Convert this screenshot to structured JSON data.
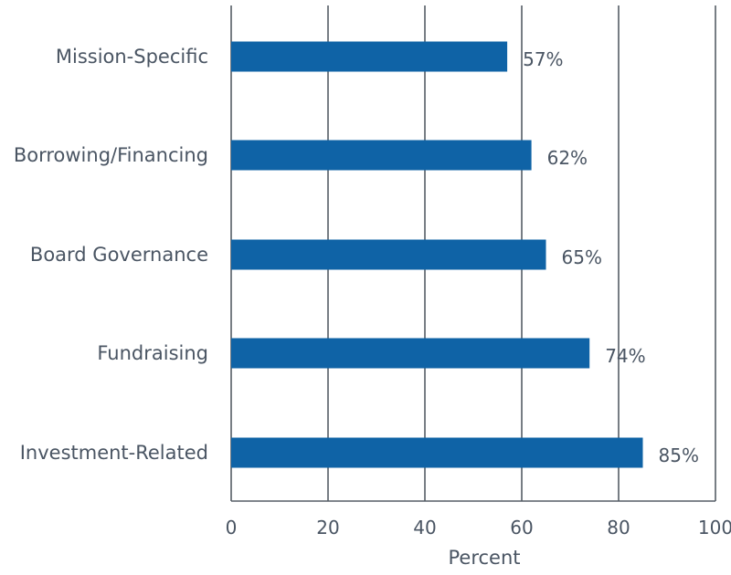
{
  "chart_data": {
    "type": "bar",
    "orientation": "horizontal",
    "categories": [
      "Mission-Specific",
      "Borrowing/Financing",
      "Board Governance",
      "Fundraising",
      "Investment-Related"
    ],
    "values": [
      57,
      62,
      65,
      74,
      85
    ],
    "value_labels": [
      "57%",
      "62%",
      "65%",
      "74%",
      "85%"
    ],
    "xlabel": "Percent",
    "xlim": [
      0,
      100
    ],
    "xticks": [
      0,
      20,
      40,
      60,
      80,
      100
    ],
    "xtick_labels": [
      "0",
      "20",
      "40",
      "60",
      "80",
      "100"
    ],
    "grid": true,
    "colors": {
      "bar": "#0f63a6",
      "grid": "#555d66",
      "text": "#4a5563"
    }
  }
}
